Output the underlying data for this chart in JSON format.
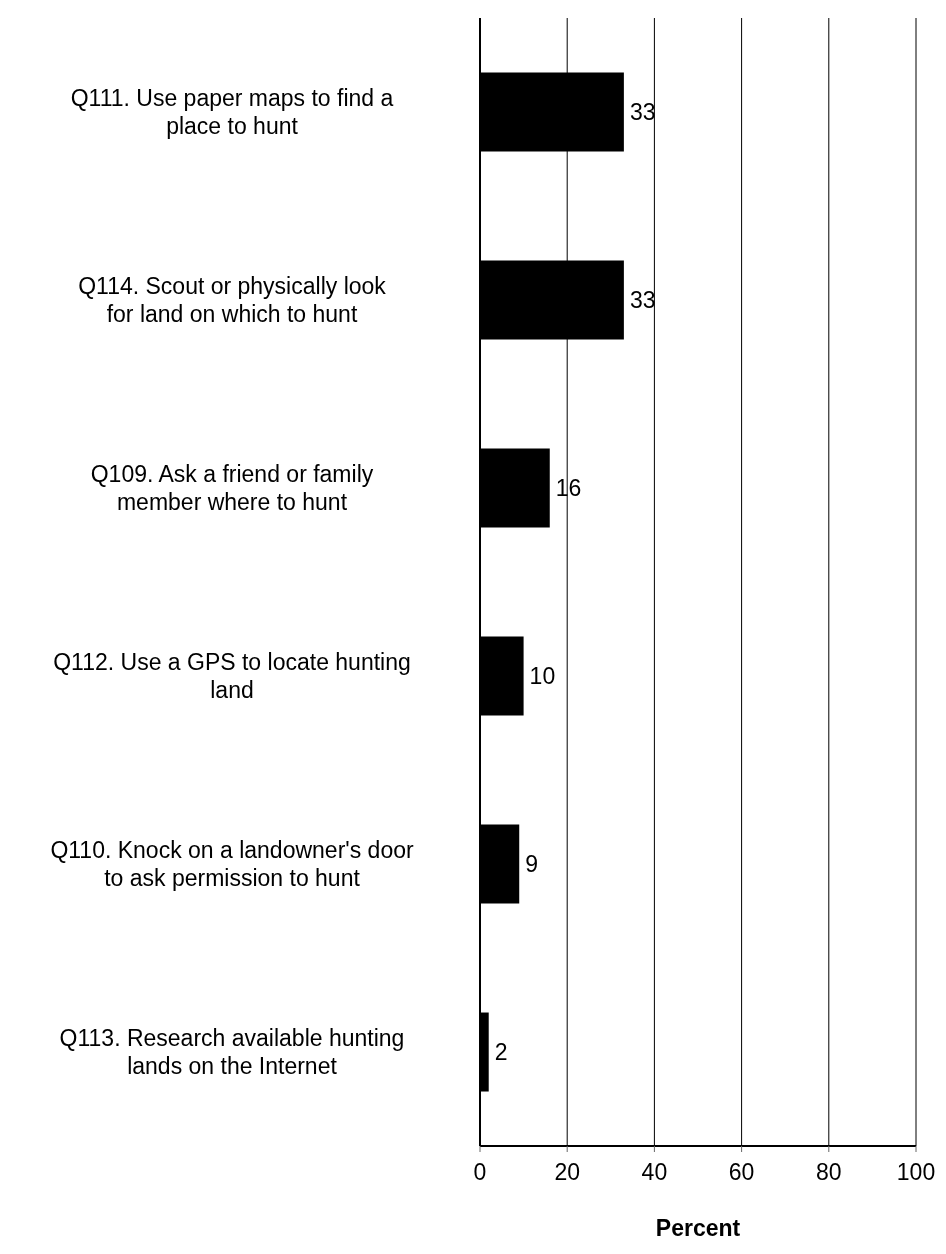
{
  "chart_data": {
    "type": "bar",
    "orientation": "horizontal",
    "xlabel": "Percent",
    "categories": [
      "Q111. Use paper maps to find a place to hunt",
      "Q114. Scout or physically look for land on which to hunt",
      "Q109. Ask a friend or family member where to hunt",
      "Q112. Use a GPS to locate hunting land",
      "Q110. Knock on a landowner's door to ask permission to hunt",
      "Q113. Research available hunting lands on the Internet"
    ],
    "values": [
      33,
      33,
      16,
      10,
      9,
      2
    ],
    "color": "#000000",
    "xlim": [
      0,
      100
    ],
    "xticks": [
      0,
      20,
      40,
      60,
      80,
      100
    ],
    "grid": "x",
    "data_labels": true
  }
}
